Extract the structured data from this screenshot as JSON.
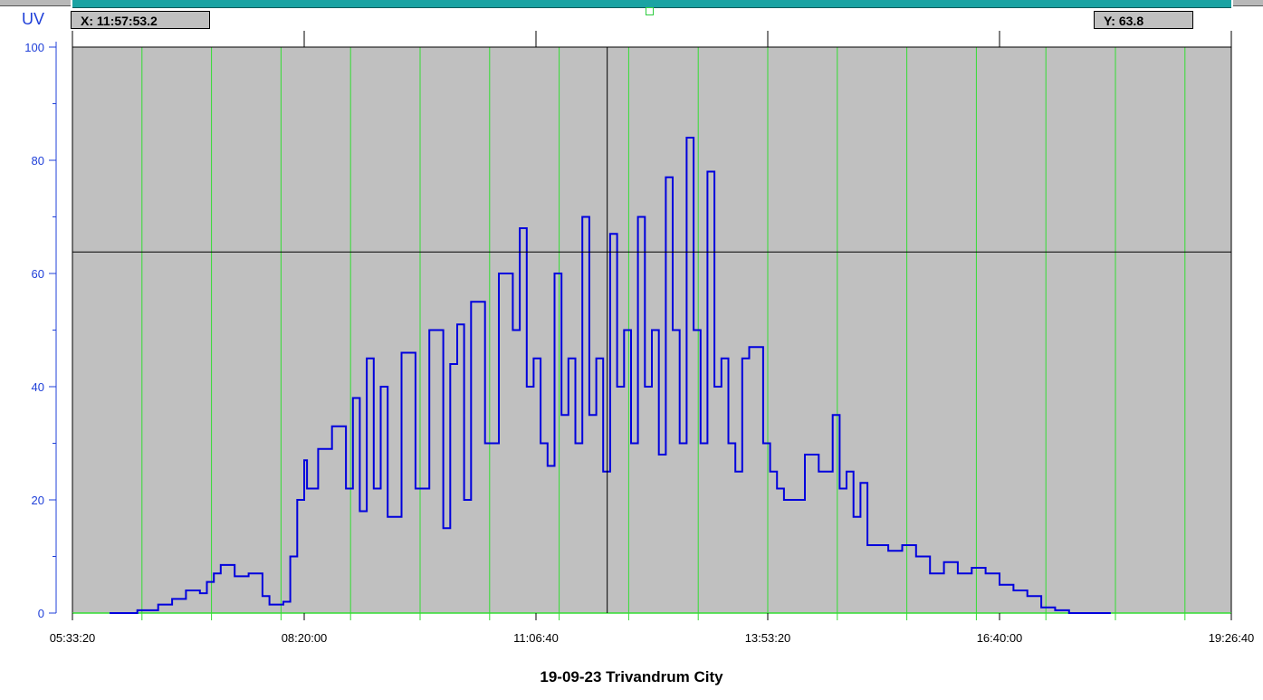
{
  "readouts": {
    "x_text": "X:  11:57:53.2",
    "y_text": "Y:  63.8"
  },
  "colors": {
    "plot_bg": "#c0c0c0",
    "series": "#0000dd",
    "gridline": "#33dd33",
    "axis_text": "#1f3fd8",
    "crosshair": "#000000"
  },
  "chart_data": {
    "type": "line",
    "title": "19-09-23 Trivandrum City",
    "ylabel": "UV",
    "xlabel": "",
    "ylim": [
      0,
      100
    ],
    "xlim": [
      "05:33:20",
      "19:26:40"
    ],
    "yticks": [
      0,
      20,
      40,
      60,
      80,
      100
    ],
    "xticks": [
      "05:33:20",
      "08:20:00",
      "11:06:40",
      "13:53:20",
      "16:40:00",
      "19:26:40"
    ],
    "grid": "vertical",
    "crosshair": {
      "x": "11:57:53.2",
      "y": 63.8
    },
    "series": [
      {
        "x": [
          "06:00",
          "06:20",
          "06:35",
          "06:45",
          "06:55",
          "07:05",
          "07:10",
          "07:15",
          "07:20",
          "07:30",
          "07:40",
          "07:50",
          "07:55",
          "08:05",
          "08:10",
          "08:15",
          "08:20",
          "08:22",
          "08:30",
          "08:40",
          "08:50",
          "08:55",
          "09:00",
          "09:05",
          "09:10",
          "09:15",
          "09:20",
          "09:30",
          "09:40",
          "09:50",
          "10:00",
          "10:05",
          "10:10",
          "10:15",
          "10:20",
          "10:30",
          "10:40",
          "10:50",
          "10:55",
          "11:00",
          "11:05",
          "11:10",
          "11:15",
          "11:20",
          "11:25",
          "11:30",
          "11:35",
          "11:40",
          "11:45",
          "11:50",
          "11:55",
          "12:00",
          "12:05",
          "12:10",
          "12:15",
          "12:20",
          "12:25",
          "12:30",
          "12:35",
          "12:40",
          "12:45",
          "12:50",
          "12:55",
          "13:00",
          "13:05",
          "13:10",
          "13:15",
          "13:20",
          "13:25",
          "13:30",
          "13:35",
          "13:40",
          "13:50",
          "13:55",
          "14:00",
          "14:05",
          "14:10",
          "14:20",
          "14:30",
          "14:40",
          "14:45",
          "14:50",
          "14:55",
          "15:00",
          "15:05",
          "15:10",
          "15:20",
          "15:30",
          "15:40",
          "15:50",
          "16:00",
          "16:10",
          "16:20",
          "16:30",
          "16:40",
          "16:50",
          "17:00",
          "17:10",
          "17:20",
          "17:30",
          "17:45",
          "18:00"
        ],
        "y": [
          0,
          0.5,
          1.5,
          2.5,
          4,
          3.5,
          5.5,
          7,
          8.5,
          6.5,
          7,
          3,
          1.5,
          2,
          10,
          20,
          27,
          22,
          29,
          33,
          22,
          38,
          18,
          45,
          22,
          40,
          17,
          46,
          22,
          50,
          15,
          44,
          51,
          20,
          55,
          30,
          60,
          50,
          68,
          40,
          45,
          30,
          26,
          60,
          35,
          45,
          30,
          70,
          35,
          45,
          25,
          67,
          40,
          50,
          30,
          70,
          40,
          50,
          28,
          77,
          50,
          30,
          84,
          50,
          30,
          78,
          40,
          45,
          30,
          25,
          45,
          47,
          30,
          25,
          22,
          20,
          20,
          28,
          25,
          35,
          22,
          25,
          17,
          23,
          12,
          12,
          11,
          12,
          10,
          7,
          9,
          7,
          8,
          7,
          5,
          4,
          3,
          1,
          0.5,
          0,
          0,
          0
        ]
      }
    ]
  }
}
